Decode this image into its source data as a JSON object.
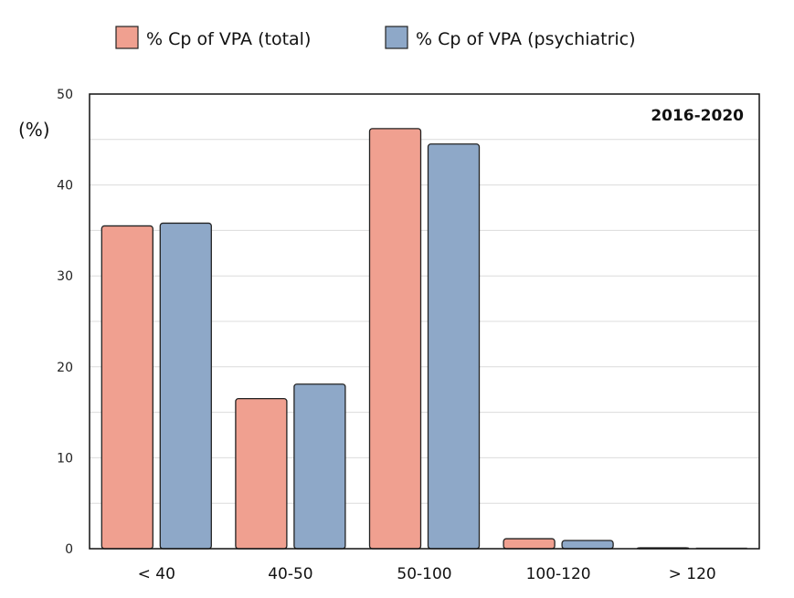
{
  "chart_data": {
    "type": "bar",
    "categories": [
      "< 40",
      "40-50",
      "50-100",
      "100-120",
      "> 120"
    ],
    "series": [
      {
        "name": "% Cp of VPA (total)",
        "values": [
          35.5,
          16.5,
          46.2,
          1.1,
          0.1
        ],
        "color": "#f0a090"
      },
      {
        "name": "% Cp of VPA (psychiatric)",
        "values": [
          35.8,
          18.1,
          44.5,
          0.9,
          0
        ],
        "color": "#8ea8c8"
      }
    ],
    "title": "",
    "annotation": "2016-2020",
    "xlabel": "",
    "ylabel": "(%)",
    "ylim": [
      0,
      50
    ],
    "yticks": [
      0,
      10,
      20,
      30,
      40,
      50
    ],
    "grid": true,
    "legend_position": "top"
  }
}
